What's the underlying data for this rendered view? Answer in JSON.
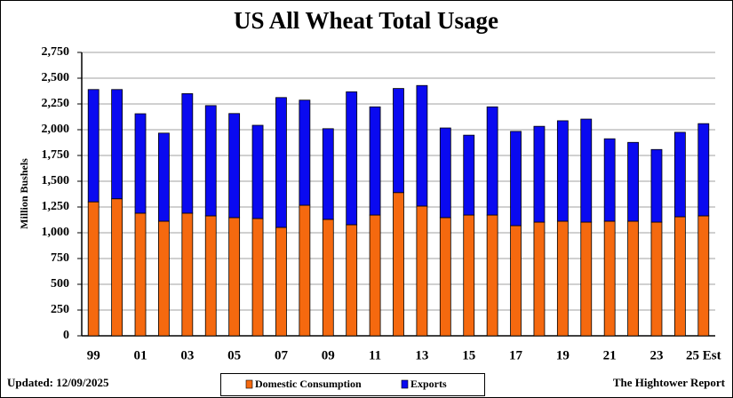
{
  "chart_data": {
    "type": "bar",
    "stacked": true,
    "title": "US All Wheat Total Usage",
    "y_label": "Million Bushels",
    "footer_left": "Updated: 12/09/2025",
    "footer_right": "The Hightower Report",
    "categories": [
      "99",
      null,
      "01",
      null,
      "03",
      null,
      "05",
      null,
      "07",
      null,
      "09",
      null,
      "11",
      null,
      "13",
      null,
      "15",
      null,
      "17",
      null,
      "19",
      null,
      "21",
      null,
      "23",
      null,
      "25 Est"
    ],
    "series": [
      {
        "name": "Domestic Consumption",
        "color": "#f5690f",
        "values": [
          1300,
          1330,
          1190,
          1112,
          1190,
          1164,
          1147,
          1138,
          1052,
          1267,
          1130,
          1078,
          1172,
          1390,
          1259,
          1147,
          1172,
          1172,
          1069,
          1103,
          1112,
          1103,
          1112,
          1112,
          1103,
          1155,
          1164
        ]
      },
      {
        "name": "Exports",
        "color": "#0a0af0",
        "values": [
          1090,
          1060,
          965,
          855,
          1160,
          1070,
          1010,
          905,
          1260,
          1020,
          880,
          1290,
          1050,
          1010,
          1170,
          870,
          775,
          1050,
          915,
          930,
          975,
          1000,
          800,
          765,
          705,
          820,
          895
        ]
      }
    ],
    "ylim": [
      0,
      2750
    ],
    "yticks": [
      0,
      250,
      500,
      750,
      {
        "value": 1000,
        "label": "1,000"
      },
      {
        "value": 1250,
        "label": "1,250"
      },
      {
        "value": 1500,
        "label": "1,500"
      },
      {
        "value": 1750,
        "label": "1,750"
      },
      {
        "value": 2000,
        "label": "2,000"
      },
      {
        "value": 2250,
        "label": "2,250"
      },
      {
        "value": 2500,
        "label": "2,500"
      },
      {
        "value": 2750,
        "label": "2,750"
      }
    ],
    "grid": true
  }
}
